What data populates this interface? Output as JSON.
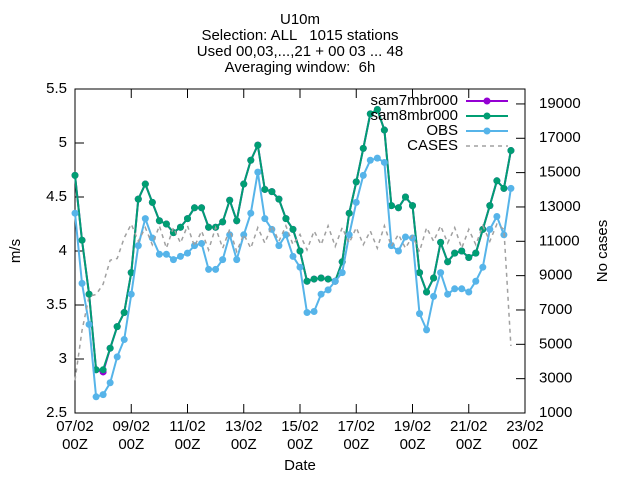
{
  "chart_data": {
    "type": "line",
    "title": [
      "U10m",
      "Selection: ALL   1015 stations",
      "Used 00,03,...,21 + 00 03 ... 48",
      "Averaging window:  6h"
    ],
    "x_label": "Date",
    "y_label": "m/s",
    "y2_label": "No cases",
    "x": [
      "07/02 00Z",
      "07/02 06Z",
      "07/02 12Z",
      "07/02 18Z",
      "08/02 00Z",
      "08/02 06Z",
      "08/02 12Z",
      "08/02 18Z",
      "09/02 00Z",
      "09/02 06Z",
      "09/02 12Z",
      "09/02 18Z",
      "10/02 00Z",
      "10/02 06Z",
      "10/02 12Z",
      "10/02 18Z",
      "11/02 00Z",
      "11/02 06Z",
      "11/02 12Z",
      "11/02 18Z",
      "12/02 00Z",
      "12/02 06Z",
      "12/02 12Z",
      "12/02 18Z",
      "13/02 00Z",
      "13/02 06Z",
      "13/02 12Z",
      "13/02 18Z",
      "14/02 00Z",
      "14/02 06Z",
      "14/02 12Z",
      "14/02 18Z",
      "15/02 00Z",
      "15/02 06Z",
      "15/02 12Z",
      "15/02 18Z",
      "16/02 00Z",
      "16/02 06Z",
      "16/02 12Z",
      "16/02 18Z",
      "17/02 00Z",
      "17/02 06Z",
      "17/02 12Z",
      "17/02 18Z",
      "18/02 00Z",
      "18/02 06Z",
      "18/02 12Z",
      "18/02 18Z",
      "19/02 00Z",
      "19/02 06Z",
      "19/02 12Z",
      "19/02 18Z",
      "20/02 00Z",
      "20/02 06Z",
      "20/02 12Z",
      "20/02 18Z",
      "21/02 00Z",
      "21/02 06Z",
      "21/02 12Z",
      "21/02 18Z",
      "22/02 00Z",
      "22/02 06Z",
      "22/02 12Z"
    ],
    "xlim": [
      "07/02 00Z",
      "23/02 00Z"
    ],
    "xticks": [
      "07/02 00Z",
      "09/02 00Z",
      "11/02 00Z",
      "13/02 00Z",
      "15/02 00Z",
      "17/02 00Z",
      "19/02 00Z",
      "21/02 00Z",
      "23/02 00Z"
    ],
    "ylim": [
      2.5,
      5.5
    ],
    "yticks": [
      2.5,
      3,
      3.5,
      4,
      4.5,
      5,
      5.5
    ],
    "y2lim": [
      1000,
      19870
    ],
    "y2ticks": [
      1000,
      3000,
      5000,
      7000,
      9000,
      11000,
      13000,
      15000,
      17000,
      19000
    ],
    "legend": "top-right",
    "series": [
      {
        "name": "sam7mbr000",
        "color": "#9400d3",
        "points": true,
        "dash": false,
        "values": [
          4.7,
          4.1,
          3.6,
          2.9,
          2.88,
          3.1,
          3.3,
          3.43,
          3.8,
          4.48,
          4.62,
          4.45,
          4.28,
          4.25,
          4.17,
          4.22,
          4.3,
          4.4,
          4.4,
          4.22,
          4.22,
          4.27,
          4.47,
          4.28,
          4.62,
          4.84,
          4.98,
          4.57,
          4.55,
          4.48,
          4.3,
          4.2,
          4.0,
          3.72,
          3.74,
          3.75,
          3.74,
          3.72,
          3.9,
          4.35,
          4.64,
          4.95,
          5.27,
          5.31,
          5.12,
          4.42,
          4.4,
          4.5,
          4.42,
          3.8,
          3.62,
          3.75,
          4.08,
          3.9,
          3.98,
          4.0,
          3.94,
          3.98,
          4.2,
          4.42,
          4.65,
          4.58,
          4.93
        ]
      },
      {
        "name": "sam8mbr000",
        "color": "#009e73",
        "points": true,
        "dash": false,
        "values": [
          4.7,
          4.1,
          3.6,
          2.9,
          2.9,
          3.1,
          3.3,
          3.43,
          3.8,
          4.48,
          4.62,
          4.45,
          4.28,
          4.25,
          4.17,
          4.22,
          4.3,
          4.4,
          4.4,
          4.22,
          4.22,
          4.27,
          4.47,
          4.28,
          4.62,
          4.84,
          4.98,
          4.57,
          4.55,
          4.48,
          4.3,
          4.2,
          4.0,
          3.72,
          3.74,
          3.75,
          3.74,
          3.72,
          3.9,
          4.35,
          4.64,
          4.95,
          5.27,
          5.31,
          5.12,
          4.42,
          4.4,
          4.5,
          4.42,
          3.8,
          3.62,
          3.75,
          4.08,
          3.9,
          3.98,
          4.0,
          3.94,
          3.98,
          4.2,
          4.42,
          4.65,
          4.58,
          4.93
        ]
      },
      {
        "name": "OBS",
        "color": "#56b4e9",
        "points": true,
        "dash": false,
        "values": [
          4.35,
          3.7,
          3.32,
          2.65,
          2.67,
          2.78,
          3.02,
          3.18,
          3.6,
          4.05,
          4.3,
          4.12,
          3.97,
          3.97,
          3.92,
          3.95,
          3.98,
          4.05,
          4.07,
          3.83,
          3.83,
          3.92,
          4.15,
          3.92,
          4.15,
          4.35,
          4.73,
          4.3,
          4.2,
          4.05,
          4.15,
          3.95,
          3.85,
          3.43,
          3.44,
          3.6,
          3.64,
          3.72,
          3.8,
          4.15,
          4.45,
          4.7,
          4.84,
          4.86,
          4.82,
          4.05,
          4.0,
          4.13,
          4.12,
          3.42,
          3.27,
          3.58,
          3.8,
          3.6,
          3.65,
          3.65,
          3.62,
          3.72,
          3.85,
          4.2,
          4.32,
          4.15,
          4.58
        ]
      },
      {
        "name": "CASES",
        "color": "#a0a0a0",
        "points": false,
        "dash": true,
        "axis": "y2",
        "values": [
          2900,
          5800,
          7800,
          7900,
          8500,
          9900,
          10000,
          11200,
          12000,
          11000,
          11800,
          10800,
          11900,
          10600,
          11800,
          10900,
          11900,
          10700,
          11600,
          10500,
          11800,
          10600,
          11700,
          10400,
          11400,
          10600,
          11800,
          10900,
          11900,
          11000,
          11900,
          10800,
          11400,
          10500,
          11600,
          10800,
          11900,
          10700,
          11800,
          10900,
          11800,
          10800,
          11600,
          10600,
          11900,
          10700,
          11400,
          10600,
          11300,
          10400,
          11800,
          11000,
          11900,
          10900,
          11800,
          10600,
          11700,
          10800,
          11900,
          11000,
          12000,
          11700,
          4900
        ]
      }
    ]
  }
}
